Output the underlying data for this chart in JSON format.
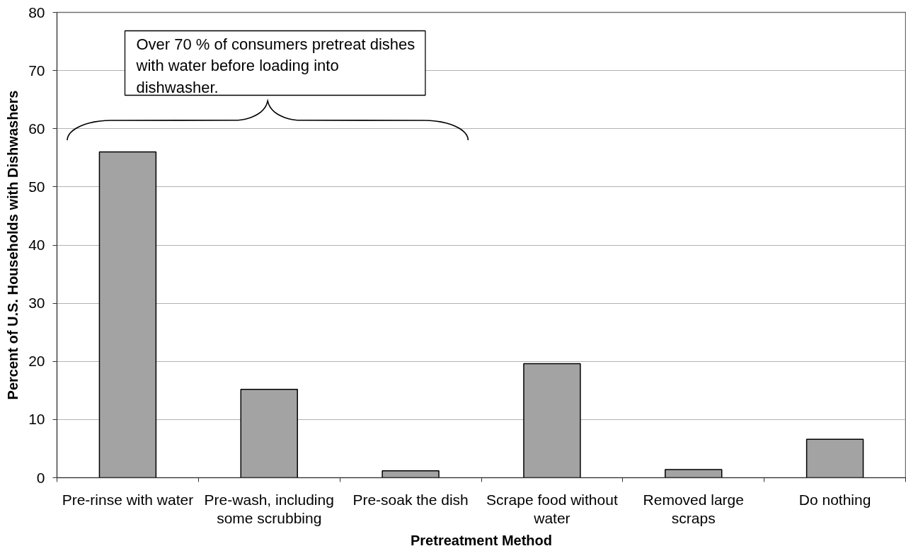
{
  "chart_data": {
    "type": "bar",
    "xlabel": "Pretreatment Method",
    "ylabel": "Percent of U.S. Households with Dishwashers",
    "categories": [
      "Pre-rinse with water",
      "Pre-wash, including some scrubbing",
      "Pre-soak the dish",
      "Scrape food without water",
      "Removed large scraps",
      "Do nothing"
    ],
    "values": [
      56.0,
      15.2,
      1.2,
      19.6,
      1.4,
      6.6
    ],
    "color": "#a3a3a3",
    "ylim": [
      0,
      80
    ],
    "yticks": [
      0,
      10,
      20,
      30,
      40,
      50,
      60,
      70,
      80
    ],
    "grid": "y",
    "annotations": [
      "Over 70 % of consumers pretreat dishes with water before loading into dishwasher."
    ]
  }
}
